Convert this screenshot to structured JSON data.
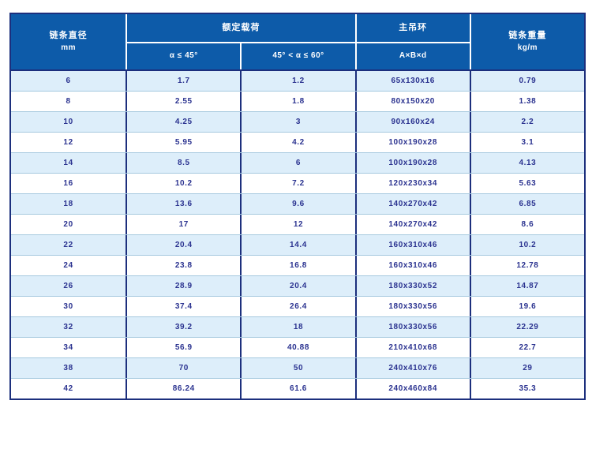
{
  "colors": {
    "header_bg": "#0d5ba9",
    "header_text": "#ffffff",
    "outer_border": "#1c2f7d",
    "column_divider": "#1c2f7d",
    "row_divider": "#a6c9df",
    "row_alt_bg": "#ddeefa",
    "row_bg": "#ffffff",
    "data_text": "#2b3390"
  },
  "table": {
    "header": {
      "diameter_title": "链条直径",
      "diameter_unit": "mm",
      "rated_load": "额定载荷",
      "angle_lte_45": "α ≤ 45°",
      "angle_45_to_60": "45° < α ≤ 60°",
      "main_ring": "主吊环",
      "ring_dims": "A×B×d",
      "weight_title": "链条重量",
      "weight_unit": "kg/m"
    },
    "rows": [
      {
        "diameter": "6",
        "load_a45": "1.7",
        "load_a60": "1.2",
        "ring": "65x130x16",
        "weight": "0.79"
      },
      {
        "diameter": "8",
        "load_a45": "2.55",
        "load_a60": "1.8",
        "ring": "80x150x20",
        "weight": "1.38"
      },
      {
        "diameter": "10",
        "load_a45": "4.25",
        "load_a60": "3",
        "ring": "90x160x24",
        "weight": "2.2"
      },
      {
        "diameter": "12",
        "load_a45": "5.95",
        "load_a60": "4.2",
        "ring": "100x190x28",
        "weight": "3.1"
      },
      {
        "diameter": "14",
        "load_a45": "8.5",
        "load_a60": "6",
        "ring": "100x190x28",
        "weight": "4.13"
      },
      {
        "diameter": "16",
        "load_a45": "10.2",
        "load_a60": "7.2",
        "ring": "120x230x34",
        "weight": "5.63"
      },
      {
        "diameter": "18",
        "load_a45": "13.6",
        "load_a60": "9.6",
        "ring": "140x270x42",
        "weight": "6.85"
      },
      {
        "diameter": "20",
        "load_a45": "17",
        "load_a60": "12",
        "ring": "140x270x42",
        "weight": "8.6"
      },
      {
        "diameter": "22",
        "load_a45": "20.4",
        "load_a60": "14.4",
        "ring": "160x310x46",
        "weight": "10.2"
      },
      {
        "diameter": "24",
        "load_a45": "23.8",
        "load_a60": "16.8",
        "ring": "160x310x46",
        "weight": "12.78"
      },
      {
        "diameter": "26",
        "load_a45": "28.9",
        "load_a60": "20.4",
        "ring": "180x330x52",
        "weight": "14.87"
      },
      {
        "diameter": "30",
        "load_a45": "37.4",
        "load_a60": "26.4",
        "ring": "180x330x56",
        "weight": "19.6"
      },
      {
        "diameter": "32",
        "load_a45": "39.2",
        "load_a60": "18",
        "ring": "180x330x56",
        "weight": "22.29"
      },
      {
        "diameter": "34",
        "load_a45": "56.9",
        "load_a60": "40.88",
        "ring": "210x410x68",
        "weight": "22.7"
      },
      {
        "diameter": "38",
        "load_a45": "70",
        "load_a60": "50",
        "ring": "240x410x76",
        "weight": "29"
      },
      {
        "diameter": "42",
        "load_a45": "86.24",
        "load_a60": "61.6",
        "ring": "240x460x84",
        "weight": "35.3"
      }
    ]
  }
}
